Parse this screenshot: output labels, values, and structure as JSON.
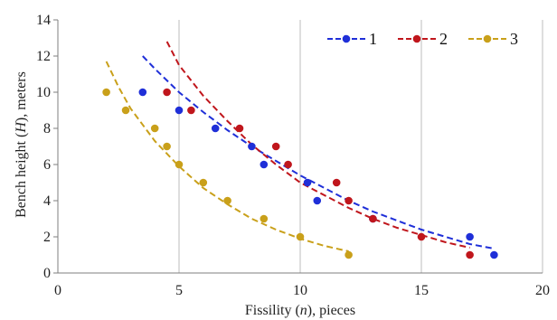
{
  "chart_data": {
    "type": "scatter",
    "xlabel_parts": [
      "Fissility (",
      "n",
      "), pieces"
    ],
    "ylabel_parts": [
      "Bench height (",
      "H",
      "), meters"
    ],
    "xlim": [
      0,
      20
    ],
    "ylim": [
      0,
      14
    ],
    "xticks": [
      "0",
      "5",
      "10",
      "15",
      "20"
    ],
    "yticks": [
      "0",
      "2",
      "4",
      "6",
      "8",
      "10",
      "12",
      "14"
    ],
    "grid": "vertical",
    "legend_position": "top-right",
    "series": [
      {
        "name": "1",
        "color": "#1f2fd8",
        "x": [
          3.5,
          5,
          6.5,
          8,
          8.5,
          10.3,
          10.7,
          13,
          17,
          18
        ],
        "y": [
          10,
          9,
          8,
          7,
          6,
          5,
          4,
          3,
          2,
          1
        ],
        "trend": {
          "x": [
            3.5,
            4,
            5,
            6,
            7,
            8,
            9,
            10,
            11,
            12,
            13,
            14,
            15,
            16,
            17,
            18
          ],
          "y": [
            12,
            11.3,
            10,
            8.9,
            7.9,
            7,
            6.2,
            5.4,
            4.7,
            4,
            3.4,
            2.9,
            2.4,
            2,
            1.6,
            1.35
          ]
        }
      },
      {
        "name": "2",
        "color": "#c0161c",
        "x": [
          4.5,
          5.5,
          7.5,
          9,
          9.5,
          11.5,
          12,
          13,
          15,
          17
        ],
        "y": [
          10,
          9,
          8,
          7,
          6,
          5,
          4,
          3,
          2,
          1
        ],
        "trend": {
          "x": [
            4.5,
            5,
            6,
            7,
            8,
            9,
            10,
            11,
            12,
            13,
            14,
            15,
            16,
            17
          ],
          "y": [
            12.8,
            11.5,
            9.8,
            8.4,
            7.1,
            6,
            5,
            4.3,
            3.6,
            3,
            2.5,
            2.1,
            1.7,
            1.4
          ]
        }
      },
      {
        "name": "3",
        "color": "#c9a01a",
        "x": [
          2,
          2.8,
          4,
          4.5,
          5,
          6,
          7,
          8.5,
          10,
          12
        ],
        "y": [
          10,
          9,
          8,
          7,
          6,
          5,
          4,
          3,
          2,
          1
        ],
        "trend": {
          "x": [
            2,
            2.5,
            3,
            4,
            5,
            6,
            7,
            8,
            9,
            10,
            11,
            12
          ],
          "y": [
            11.7,
            10.3,
            9.1,
            7.3,
            5.9,
            4.7,
            3.8,
            3,
            2.4,
            1.9,
            1.5,
            1.2
          ]
        }
      }
    ]
  }
}
